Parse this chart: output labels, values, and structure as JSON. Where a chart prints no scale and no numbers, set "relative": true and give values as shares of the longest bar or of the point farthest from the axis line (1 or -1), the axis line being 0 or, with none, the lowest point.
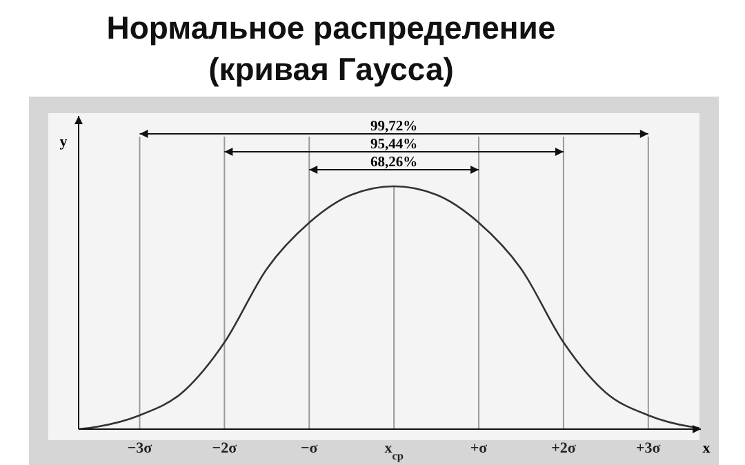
{
  "chart_data": {
    "type": "line",
    "title": "Нормальное распределение\n(кривая Гаусса)",
    "xlabel": "x",
    "ylabel": "y",
    "relative": true,
    "x": [
      -3.72,
      -3.5,
      -3,
      -2.5,
      -2,
      -1.5,
      -1,
      -0.5,
      0,
      0.5,
      1,
      1.5,
      2,
      2.5,
      3,
      3.5,
      3.6
    ],
    "series": [
      {
        "color": "#333333",
        "values": [
          0,
          0.01,
          0.057,
          0.15,
          0.357,
          0.66,
          0.85,
          0.965,
          1,
          0.965,
          0.85,
          0.66,
          0.357,
          0.15,
          0.057,
          0.01,
          0.005
        ]
      }
    ],
    "xlim": [
      -3.72,
      3.62
    ],
    "xticks": [
      {
        "value": -3,
        "label": "−3σ"
      },
      {
        "value": -2,
        "label": "−2σ"
      },
      {
        "value": -1,
        "label": "−σ"
      },
      {
        "value": 0,
        "label": "x$_{ср}$"
      },
      {
        "value": 1,
        "label": "+σ"
      },
      {
        "value": 2,
        "label": "+2σ"
      },
      {
        "value": 3,
        "label": "+3σ"
      }
    ],
    "ref_lines": [
      {
        "axis": "x",
        "value": -3,
        "color": "#999999"
      },
      {
        "axis": "x",
        "value": -2,
        "color": "#999999"
      },
      {
        "axis": "x",
        "value": -1,
        "color": "#999999"
      },
      {
        "axis": "x",
        "value": 0,
        "color": "#999999"
      },
      {
        "axis": "x",
        "value": 1,
        "color": "#999999"
      },
      {
        "axis": "x",
        "value": 2,
        "color": "#999999"
      },
      {
        "axis": "x",
        "value": 3,
        "color": "#999999"
      }
    ],
    "annotations": [
      "99,72%",
      "95,44%",
      "68,26%"
    ],
    "marker": "none",
    "line_style": "solid"
  }
}
